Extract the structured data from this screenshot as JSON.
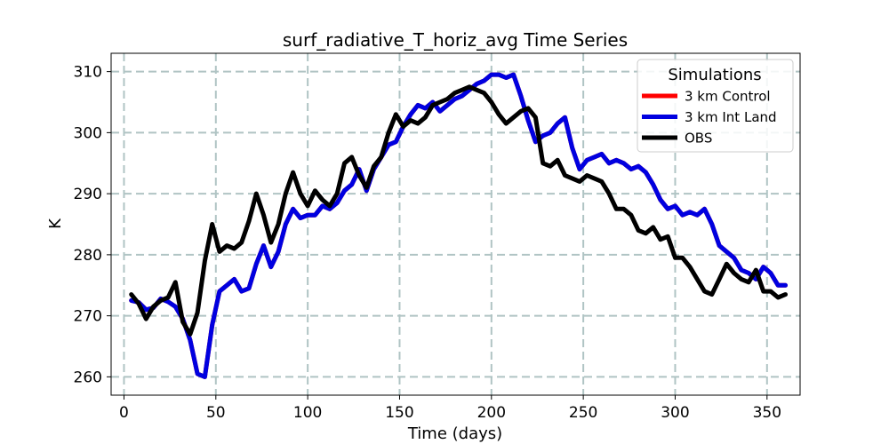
{
  "chart_data": {
    "type": "line",
    "title": "surf_radiative_T_horiz_avg Time Series",
    "xlabel": "Time (days)",
    "ylabel": "K",
    "xlim": [
      -7,
      368
    ],
    "ylim": [
      257,
      313
    ],
    "x_ticks": [
      0,
      50,
      100,
      150,
      200,
      250,
      300,
      350
    ],
    "y_ticks": [
      260,
      270,
      280,
      290,
      300,
      310
    ],
    "grid": true,
    "legend": {
      "title": "Simulations",
      "placement": "top-right"
    },
    "series": [
      {
        "name": "3 km Control",
        "color": "#ff0000",
        "x": [
          4,
          8,
          12,
          16,
          20,
          24,
          28,
          32,
          36,
          40,
          44,
          48,
          52,
          56,
          60,
          64,
          68,
          72,
          76,
          80,
          84,
          88,
          92,
          96,
          100,
          104,
          108,
          112,
          116,
          120,
          124,
          128,
          132,
          136,
          140,
          144,
          148,
          152,
          156,
          160,
          164,
          168,
          172,
          176,
          180,
          184,
          188,
          192,
          196,
          200,
          204,
          208,
          212,
          216,
          220,
          224,
          228,
          232,
          236,
          240,
          244,
          248,
          252,
          256,
          260,
          264,
          268,
          272,
          276,
          280,
          284,
          288,
          292,
          296,
          300,
          304,
          308,
          312,
          316,
          320,
          324,
          328,
          332,
          336,
          340,
          344,
          348,
          352,
          356,
          360
        ],
        "values": [
          272.5,
          272.2,
          271.0,
          271.3,
          272.8,
          272.3,
          271.5,
          269.5,
          266.0,
          260.5,
          260.0,
          268.5,
          274.0,
          275.0,
          276.0,
          274.0,
          274.5,
          278.5,
          281.5,
          278.0,
          280.5,
          285.0,
          287.5,
          286.0,
          286.5,
          286.5,
          288.0,
          287.5,
          288.5,
          290.5,
          291.5,
          294.0,
          290.5,
          294.0,
          296.0,
          298.0,
          298.5,
          301.0,
          303.0,
          304.5,
          304.0,
          305.0,
          303.5,
          304.5,
          305.5,
          306.0,
          307.0,
          308.0,
          308.5,
          309.5,
          309.5,
          309.0,
          309.5,
          306.0,
          302.0,
          298.5,
          299.5,
          300.0,
          301.5,
          302.5,
          297.5,
          294.0,
          295.5,
          296.0,
          296.5,
          295.0,
          295.5,
          295.0,
          294.0,
          294.5,
          293.5,
          291.5,
          289.0,
          287.5,
          288.0,
          286.5,
          287.0,
          286.5,
          287.5,
          285.0,
          281.5,
          280.5,
          279.5,
          277.5,
          277.0,
          276.0,
          278.0,
          277.0,
          275.0,
          275.0
        ]
      },
      {
        "name": "3 km Int Land",
        "color": "#0000e0",
        "x": [
          4,
          8,
          12,
          16,
          20,
          24,
          28,
          32,
          36,
          40,
          44,
          48,
          52,
          56,
          60,
          64,
          68,
          72,
          76,
          80,
          84,
          88,
          92,
          96,
          100,
          104,
          108,
          112,
          116,
          120,
          124,
          128,
          132,
          136,
          140,
          144,
          148,
          152,
          156,
          160,
          164,
          168,
          172,
          176,
          180,
          184,
          188,
          192,
          196,
          200,
          204,
          208,
          212,
          216,
          220,
          224,
          228,
          232,
          236,
          240,
          244,
          248,
          252,
          256,
          260,
          264,
          268,
          272,
          276,
          280,
          284,
          288,
          292,
          296,
          300,
          304,
          308,
          312,
          316,
          320,
          324,
          328,
          332,
          336,
          340,
          344,
          348,
          352,
          356,
          360
        ],
        "values": [
          272.5,
          272.2,
          271.0,
          271.3,
          272.8,
          272.3,
          271.5,
          269.5,
          266.0,
          260.5,
          260.0,
          268.5,
          274.0,
          275.0,
          276.0,
          274.0,
          274.5,
          278.5,
          281.5,
          278.0,
          280.5,
          285.0,
          287.5,
          286.0,
          286.5,
          286.5,
          288.0,
          287.5,
          288.5,
          290.5,
          291.5,
          294.0,
          290.5,
          294.0,
          296.0,
          298.0,
          298.5,
          301.0,
          303.0,
          304.5,
          304.0,
          305.0,
          303.5,
          304.5,
          305.5,
          306.0,
          307.0,
          308.0,
          308.5,
          309.5,
          309.5,
          309.0,
          309.5,
          306.0,
          302.0,
          298.5,
          299.5,
          300.0,
          301.5,
          302.5,
          297.5,
          294.0,
          295.5,
          296.0,
          296.5,
          295.0,
          295.5,
          295.0,
          294.0,
          294.5,
          293.5,
          291.5,
          289.0,
          287.5,
          288.0,
          286.5,
          287.0,
          286.5,
          287.5,
          285.0,
          281.5,
          280.5,
          279.5,
          277.5,
          277.0,
          276.0,
          278.0,
          277.0,
          275.0,
          275.0
        ]
      },
      {
        "name": "OBS",
        "color": "#000000",
        "x": [
          4,
          8,
          12,
          16,
          20,
          24,
          28,
          32,
          36,
          40,
          44,
          48,
          52,
          56,
          60,
          64,
          68,
          72,
          76,
          80,
          84,
          88,
          92,
          96,
          100,
          104,
          108,
          112,
          116,
          120,
          124,
          128,
          132,
          136,
          140,
          144,
          148,
          152,
          156,
          160,
          164,
          168,
          172,
          176,
          180,
          184,
          188,
          192,
          196,
          200,
          204,
          208,
          212,
          216,
          220,
          224,
          228,
          232,
          236,
          240,
          244,
          248,
          252,
          256,
          260,
          264,
          268,
          272,
          276,
          280,
          284,
          288,
          292,
          296,
          300,
          304,
          308,
          312,
          316,
          320,
          324,
          328,
          332,
          336,
          340,
          344,
          348,
          352,
          356,
          360
        ],
        "values": [
          273.5,
          272.0,
          269.5,
          271.5,
          272.5,
          273.0,
          275.5,
          269.0,
          267.0,
          270.5,
          279.0,
          285.0,
          280.5,
          281.5,
          281.0,
          282.0,
          285.5,
          290.0,
          286.5,
          282.0,
          285.0,
          290.0,
          293.5,
          290.0,
          288.0,
          290.5,
          289.0,
          288.0,
          290.0,
          295.0,
          296.0,
          293.0,
          291.0,
          294.5,
          296.0,
          300.0,
          303.0,
          301.0,
          302.0,
          301.5,
          302.5,
          304.5,
          305.0,
          305.5,
          306.5,
          307.0,
          307.5,
          307.0,
          306.5,
          305.0,
          303.0,
          301.5,
          302.5,
          303.5,
          304.0,
          302.5,
          295.0,
          294.5,
          295.5,
          293.0,
          292.5,
          292.0,
          293.0,
          292.5,
          292.0,
          290.0,
          287.5,
          287.5,
          286.5,
          284.0,
          283.5,
          284.5,
          282.5,
          283.0,
          279.5,
          279.5,
          278.0,
          276.0,
          274.0,
          273.5,
          276.0,
          278.5,
          277.0,
          276.0,
          275.5,
          277.5,
          274.0,
          274.0,
          273.0,
          273.5
        ]
      }
    ]
  }
}
